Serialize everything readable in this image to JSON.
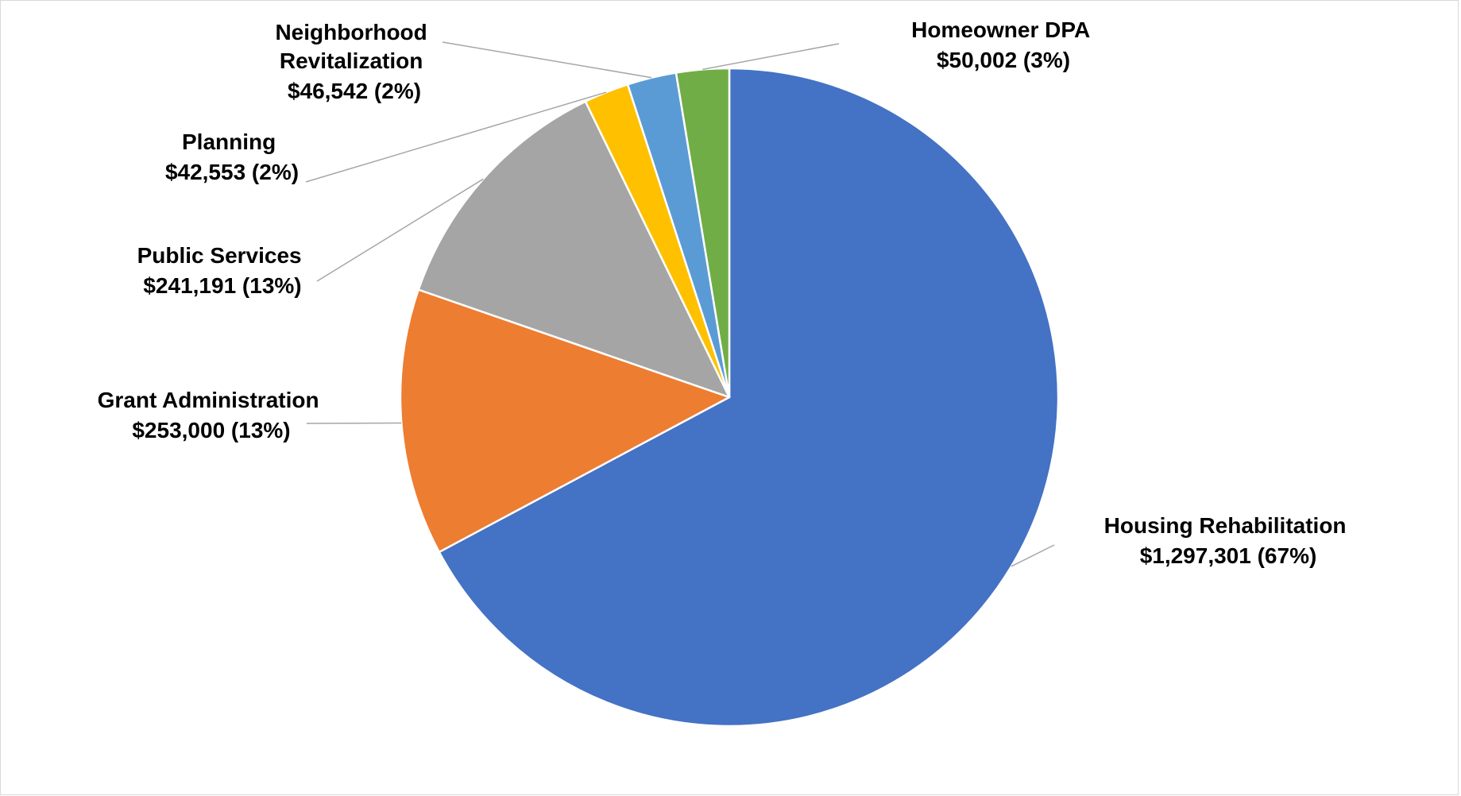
{
  "chart_data": {
    "type": "pie",
    "start_angle_deg": 0,
    "direction": "clockwise",
    "slices": [
      {
        "name": "Housing Rehabilitation",
        "value": 1297301,
        "value_label": "$1,297,301  (67%)",
        "percent": 67,
        "color": "#4472c4"
      },
      {
        "name": "Grant Administration",
        "value": 253000,
        "value_label": "$253,000  (13%)",
        "percent": 13,
        "color": "#ed7d31"
      },
      {
        "name": "Public Services",
        "value": 241191,
        "value_label": "$241,191 (13%)",
        "percent": 13,
        "color": "#a5a5a5"
      },
      {
        "name": "Planning",
        "value": 42553,
        "value_label": "$42,553 (2%)",
        "percent": 2,
        "color": "#ffc000"
      },
      {
        "name": "Neighborhood Revitalization",
        "value": 46542,
        "value_label": "$46,542 (2%)",
        "percent": 2,
        "color": "#5b9bd5"
      },
      {
        "name": "Homeowner DPA",
        "value": 50002,
        "value_label": "$50,002  (3%)",
        "percent": 3,
        "color": "#70ad47"
      }
    ],
    "labels": {
      "housing": [
        "Housing Rehabilitation",
        "$1,297,301  (67%)"
      ],
      "grant": [
        "Grant Administration",
        "$253,000  (13%)"
      ],
      "public": [
        "Public Services",
        "$241,191 (13%)"
      ],
      "planning": [
        "Planning",
        "$42,553 (2%)"
      ],
      "neighborhood": [
        "Neighborhood",
        "Revitalization",
        "$46,542 (2%)"
      ],
      "homeowner": [
        "Homeowner DPA",
        "$50,002  (3%)"
      ]
    },
    "leader_line_color": "#a6a6a6"
  }
}
